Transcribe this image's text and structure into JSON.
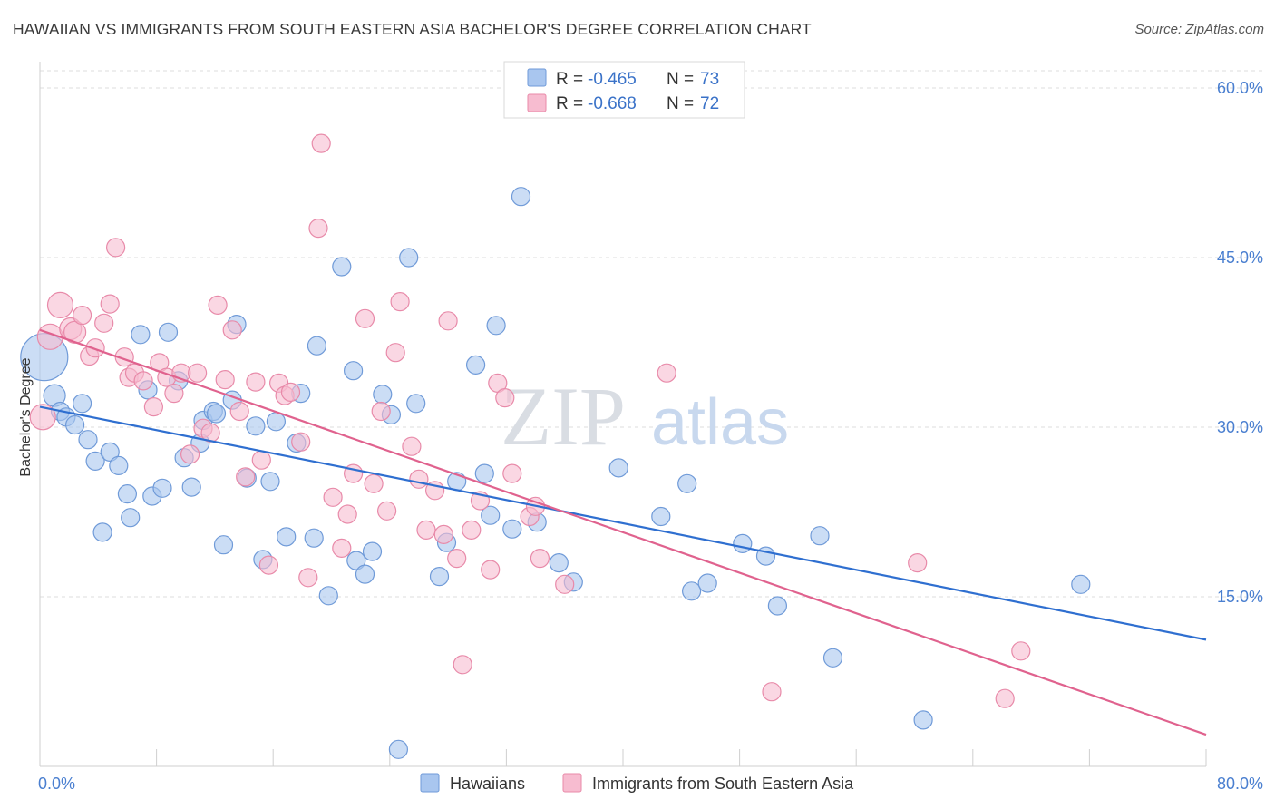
{
  "chart_data": {
    "type": "scatter",
    "title": "HAWAIIAN VS IMMIGRANTS FROM SOUTH EASTERN ASIA BACHELOR'S DEGREE CORRELATION CHART",
    "source": "Source: ZipAtlas.com",
    "ylabel": "Bachelor's Degree",
    "xlim": [
      0,
      80
    ],
    "ylim": [
      0,
      60
    ],
    "x_tick_labels": [
      "0.0%",
      "80.0%"
    ],
    "y_ticks": [
      {
        "value": 15,
        "label": "15.0%"
      },
      {
        "value": 30,
        "label": "30.0%"
      },
      {
        "value": 45,
        "label": "45.0%"
      },
      {
        "value": 60,
        "label": "60.0%"
      }
    ],
    "watermark": {
      "part1": "ZIP",
      "part2": "atlas"
    },
    "legend": [
      {
        "r_label": "R =",
        "r_value": "-0.465",
        "n_label": "N =",
        "n_value": "73"
      },
      {
        "r_label": "R =",
        "r_value": "-0.668",
        "n_label": "N =",
        "n_value": "72"
      }
    ],
    "series": [
      {
        "name": "Hawaiians",
        "color": "#a9c6ef",
        "stroke": "#6f9ad8",
        "line_color": "#2f6fd0",
        "trend": {
          "x0": 0,
          "y0": 31.8,
          "x1": 80,
          "y1": 11.2
        },
        "points": [
          [
            0.3,
            36.2,
            26
          ],
          [
            1.0,
            32.8,
            12
          ],
          [
            1.4,
            31.4,
            10
          ],
          [
            1.8,
            30.9,
            10
          ],
          [
            2.4,
            30.2,
            10
          ],
          [
            2.9,
            32.1,
            10
          ],
          [
            3.3,
            28.9,
            10
          ],
          [
            3.8,
            27.0,
            10
          ],
          [
            4.3,
            20.7,
            10
          ],
          [
            4.8,
            27.8,
            10
          ],
          [
            5.4,
            26.6,
            10
          ],
          [
            6.0,
            24.1,
            10
          ],
          [
            6.2,
            22.0,
            10
          ],
          [
            6.9,
            38.2,
            10
          ],
          [
            7.4,
            33.3,
            10
          ],
          [
            7.7,
            23.9,
            10
          ],
          [
            8.4,
            24.6,
            10
          ],
          [
            8.8,
            38.4,
            10
          ],
          [
            9.5,
            34.1,
            10
          ],
          [
            9.9,
            27.3,
            10
          ],
          [
            10.4,
            24.7,
            10
          ],
          [
            11.0,
            28.6,
            10
          ],
          [
            11.2,
            30.6,
            10
          ],
          [
            11.9,
            31.4,
            10
          ],
          [
            12.1,
            31.2,
            10
          ],
          [
            12.6,
            19.6,
            10
          ],
          [
            13.2,
            32.4,
            10
          ],
          [
            13.5,
            39.1,
            10
          ],
          [
            14.2,
            25.5,
            10
          ],
          [
            14.8,
            30.1,
            10
          ],
          [
            15.3,
            18.3,
            10
          ],
          [
            15.8,
            25.2,
            10
          ],
          [
            16.2,
            30.5,
            10
          ],
          [
            16.9,
            20.3,
            10
          ],
          [
            17.6,
            28.6,
            10
          ],
          [
            17.9,
            33.0,
            10
          ],
          [
            18.8,
            20.2,
            10
          ],
          [
            19.0,
            37.2,
            10
          ],
          [
            19.8,
            15.1,
            10
          ],
          [
            20.7,
            44.2,
            10
          ],
          [
            21.5,
            35.0,
            10
          ],
          [
            21.7,
            18.2,
            10
          ],
          [
            22.3,
            17.0,
            10
          ],
          [
            22.8,
            19.0,
            10
          ],
          [
            23.5,
            32.9,
            10
          ],
          [
            24.1,
            31.1,
            10
          ],
          [
            25.3,
            45.0,
            10
          ],
          [
            25.8,
            32.1,
            10
          ],
          [
            27.4,
            16.8,
            10
          ],
          [
            27.9,
            19.8,
            10
          ],
          [
            28.6,
            25.2,
            10
          ],
          [
            29.9,
            35.5,
            10
          ],
          [
            30.5,
            25.9,
            10
          ],
          [
            30.9,
            22.2,
            10
          ],
          [
            31.3,
            39.0,
            10
          ],
          [
            32.4,
            21.0,
            10
          ],
          [
            33.0,
            50.4,
            10
          ],
          [
            34.1,
            21.6,
            10
          ],
          [
            35.6,
            18.0,
            10
          ],
          [
            36.6,
            16.3,
            10
          ],
          [
            39.7,
            26.4,
            10
          ],
          [
            42.6,
            22.1,
            10
          ],
          [
            44.4,
            25.0,
            10
          ],
          [
            44.7,
            15.5,
            10
          ],
          [
            45.8,
            16.2,
            10
          ],
          [
            48.2,
            19.7,
            10
          ],
          [
            49.8,
            18.6,
            10
          ],
          [
            50.6,
            14.2,
            10
          ],
          [
            53.5,
            20.4,
            10
          ],
          [
            54.4,
            9.6,
            10
          ],
          [
            60.6,
            4.1,
            10
          ],
          [
            71.4,
            16.1,
            10
          ],
          [
            24.6,
            1.5,
            10
          ]
        ]
      },
      {
        "name": "Immigrants from South Eastern Asia",
        "color": "#f7bcd0",
        "stroke": "#e88aa9",
        "line_color": "#e0628e",
        "trend": {
          "x0": 0,
          "y0": 38.6,
          "x1": 80,
          "y1": 2.8
        },
        "points": [
          [
            0.2,
            30.9,
            14
          ],
          [
            0.7,
            38.0,
            14
          ],
          [
            1.4,
            40.8,
            14
          ],
          [
            2.1,
            38.7,
            12
          ],
          [
            2.4,
            38.4,
            12
          ],
          [
            2.9,
            39.9,
            10
          ],
          [
            3.4,
            36.3,
            10
          ],
          [
            3.8,
            37.0,
            10
          ],
          [
            4.4,
            39.2,
            10
          ],
          [
            4.8,
            40.9,
            10
          ],
          [
            5.2,
            45.9,
            10
          ],
          [
            5.8,
            36.2,
            10
          ],
          [
            6.1,
            34.4,
            10
          ],
          [
            6.5,
            34.8,
            10
          ],
          [
            7.1,
            34.1,
            10
          ],
          [
            7.8,
            31.8,
            10
          ],
          [
            8.2,
            35.7,
            10
          ],
          [
            8.7,
            34.4,
            10
          ],
          [
            9.2,
            33.0,
            10
          ],
          [
            9.7,
            34.8,
            10
          ],
          [
            10.3,
            27.6,
            10
          ],
          [
            10.8,
            34.8,
            10
          ],
          [
            11.2,
            29.9,
            10
          ],
          [
            11.7,
            29.5,
            10
          ],
          [
            12.2,
            40.8,
            10
          ],
          [
            12.7,
            34.2,
            10
          ],
          [
            13.2,
            38.6,
            10
          ],
          [
            13.7,
            31.4,
            10
          ],
          [
            14.1,
            25.6,
            10
          ],
          [
            14.8,
            34.0,
            10
          ],
          [
            15.2,
            27.1,
            10
          ],
          [
            15.7,
            17.8,
            10
          ],
          [
            16.4,
            33.9,
            10
          ],
          [
            16.8,
            32.8,
            10
          ],
          [
            17.2,
            33.1,
            10
          ],
          [
            17.9,
            28.7,
            10
          ],
          [
            18.4,
            16.7,
            10
          ],
          [
            19.1,
            47.6,
            10
          ],
          [
            19.3,
            55.1,
            10
          ],
          [
            20.1,
            23.8,
            10
          ],
          [
            20.7,
            19.3,
            10
          ],
          [
            21.1,
            22.3,
            10
          ],
          [
            21.5,
            25.9,
            10
          ],
          [
            22.3,
            39.6,
            10
          ],
          [
            22.9,
            25.0,
            10
          ],
          [
            23.4,
            31.4,
            10
          ],
          [
            23.8,
            22.6,
            10
          ],
          [
            24.4,
            36.6,
            10
          ],
          [
            24.7,
            41.1,
            10
          ],
          [
            25.5,
            28.3,
            10
          ],
          [
            26.0,
            25.4,
            10
          ],
          [
            26.5,
            20.9,
            10
          ],
          [
            27.1,
            24.4,
            10
          ],
          [
            27.7,
            20.5,
            10
          ],
          [
            28.0,
            39.4,
            10
          ],
          [
            28.6,
            18.4,
            10
          ],
          [
            29.0,
            9.0,
            10
          ],
          [
            29.6,
            20.9,
            10
          ],
          [
            30.2,
            23.5,
            10
          ],
          [
            30.9,
            17.4,
            10
          ],
          [
            31.4,
            33.9,
            10
          ],
          [
            31.9,
            32.6,
            10
          ],
          [
            32.4,
            25.9,
            10
          ],
          [
            33.6,
            22.1,
            10
          ],
          [
            34.3,
            18.4,
            10
          ],
          [
            36.0,
            16.1,
            10
          ],
          [
            34.0,
            23.0,
            10
          ],
          [
            43.0,
            34.8,
            10
          ],
          [
            50.2,
            6.6,
            10
          ],
          [
            60.2,
            18.0,
            10
          ],
          [
            66.2,
            6.0,
            10
          ],
          [
            67.3,
            10.2,
            10
          ]
        ]
      }
    ]
  }
}
